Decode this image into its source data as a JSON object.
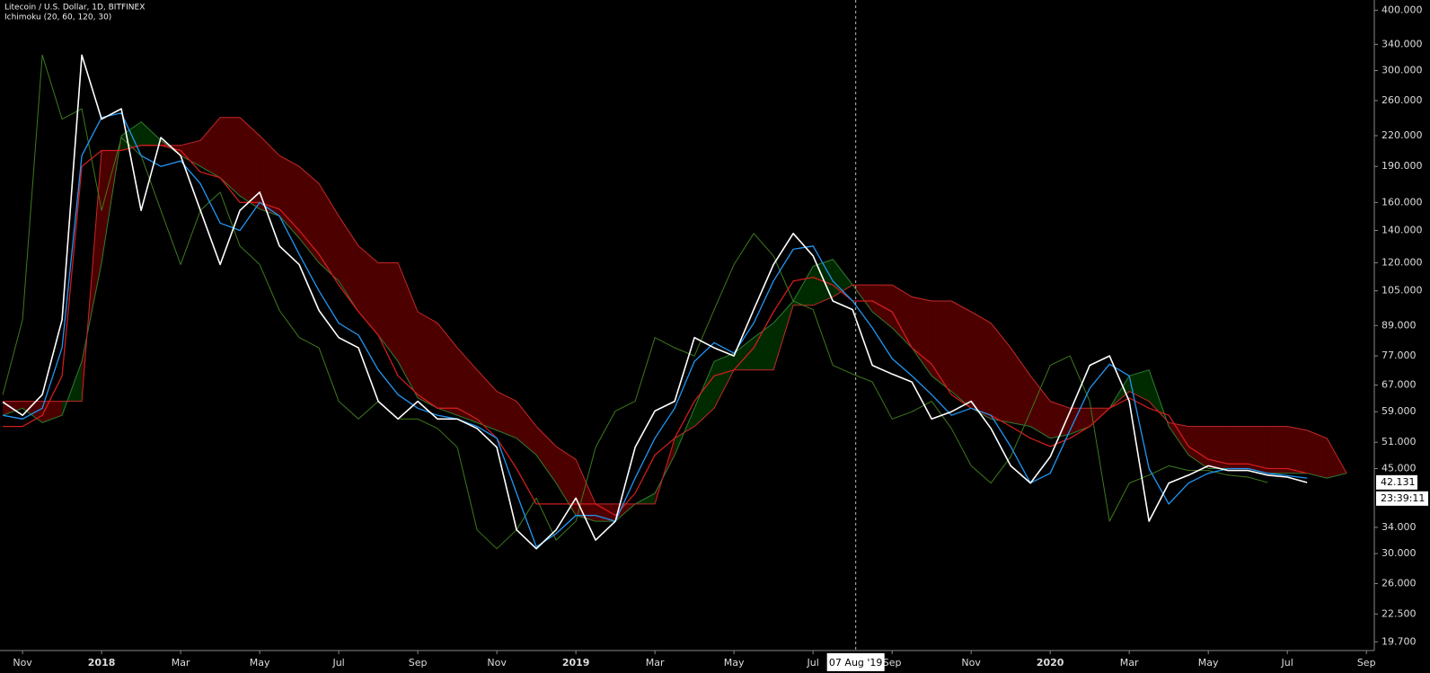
{
  "chart_data": {
    "type": "ichimoku",
    "title": "Litecoin / U.S. Dollar, 1D, BITFINEX",
    "subtitle": "Ichimoku (20, 60, 120, 30)",
    "log_scale": true,
    "xlim": [
      -0.57,
      34.2
    ],
    "ylim": [
      18.9,
      420
    ],
    "xticks": [
      {
        "value": 0,
        "label": "Nov"
      },
      {
        "value": 2,
        "label": "2018"
      },
      {
        "value": 4,
        "label": "Mar"
      },
      {
        "value": 6,
        "label": "May"
      },
      {
        "value": 8,
        "label": "Jul"
      },
      {
        "value": 10,
        "label": "Sep"
      },
      {
        "value": 12,
        "label": "Nov"
      },
      {
        "value": 14,
        "label": "2019"
      },
      {
        "value": 16,
        "label": "Mar"
      },
      {
        "value": 18,
        "label": "May"
      },
      {
        "value": 20,
        "label": "Jul"
      },
      {
        "value": 22,
        "label": "Sep"
      },
      {
        "value": 24,
        "label": "Nov"
      },
      {
        "value": 26,
        "label": "2020"
      },
      {
        "value": 28,
        "label": "Mar"
      },
      {
        "value": 30,
        "label": "May"
      },
      {
        "value": 32,
        "label": "Jul"
      },
      {
        "value": 34,
        "label": "Sep"
      }
    ],
    "yticks": [
      {
        "value": 400,
        "label": "400.000"
      },
      {
        "value": 340,
        "label": "340.000"
      },
      {
        "value": 300,
        "label": "300.000"
      },
      {
        "value": 260,
        "label": "260.000"
      },
      {
        "value": 220,
        "label": "220.000"
      },
      {
        "value": 190,
        "label": "190.000"
      },
      {
        "value": 160,
        "label": "160.000"
      },
      {
        "value": 140,
        "label": "140.000"
      },
      {
        "value": 120,
        "label": "120.000"
      },
      {
        "value": 105,
        "label": "105.000"
      },
      {
        "value": 89,
        "label": "89.000"
      },
      {
        "value": 77,
        "label": "77.000"
      },
      {
        "value": 67,
        "label": "67.000"
      },
      {
        "value": 59,
        "label": "59.000"
      },
      {
        "value": 51,
        "label": "51.000"
      },
      {
        "value": 45,
        "label": "45.000"
      },
      {
        "value": 34,
        "label": "34.000"
      },
      {
        "value": 30,
        "label": "30.000"
      },
      {
        "value": 26,
        "label": "26.000"
      },
      {
        "value": 22.5,
        "label": "22.500"
      },
      {
        "value": 19.7,
        "label": "19.700"
      }
    ],
    "x": [
      -0.5,
      0,
      0.5,
      1,
      1.5,
      2,
      2.5,
      3,
      3.5,
      4,
      4.5,
      5,
      5.5,
      6,
      6.5,
      7,
      7.5,
      8,
      8.5,
      9,
      9.5,
      10,
      10.5,
      11,
      11.5,
      12,
      12.5,
      13,
      13.5,
      14,
      14.5,
      15,
      15.5,
      16,
      16.5,
      17,
      17.5,
      18,
      18.5,
      19,
      19.5,
      20,
      20.5,
      21,
      21.5,
      22,
      22.5,
      23,
      23.5,
      24,
      24.5,
      25,
      25.5,
      26,
      26.5,
      27,
      27.5,
      28,
      28.5,
      29,
      29.5,
      30,
      30.5,
      31,
      31.5,
      32,
      32.5,
      33,
      33.5
    ],
    "cloud_up_color": "rgba(0,110,0,0.38)",
    "cloud_down_color": "rgba(140,0,0,0.55)",
    "span_a": {
      "color": "#2e7d32",
      "values": [
        58,
        60,
        56,
        58,
        75,
        120,
        220,
        235,
        215,
        200,
        190,
        180,
        165,
        155,
        150,
        135,
        120,
        110,
        95,
        85,
        75,
        63,
        60,
        58,
        56,
        54,
        52,
        48,
        42,
        36,
        35,
        35,
        38,
        40,
        48,
        60,
        75,
        78,
        84,
        90,
        100,
        118,
        122,
        108,
        95,
        88,
        80,
        70,
        65,
        60,
        57,
        56,
        55,
        52,
        53,
        55,
        60,
        70,
        72,
        55,
        48,
        45,
        45,
        45,
        44,
        44,
        44,
        43,
        44
      ]
    },
    "span_b": {
      "color": "#c62828",
      "values": [
        62,
        62,
        62,
        62,
        62,
        205,
        205,
        210,
        210,
        210,
        215,
        240,
        240,
        220,
        200,
        190,
        175,
        150,
        130,
        120,
        120,
        95,
        90,
        80,
        72,
        65,
        62,
        55,
        50,
        47,
        38,
        38,
        38,
        38,
        52,
        55,
        60,
        72,
        72,
        72,
        98,
        98,
        102,
        108,
        108,
        108,
        102,
        100,
        100,
        95,
        90,
        80,
        70,
        62,
        60,
        60,
        60,
        65,
        62,
        56,
        55,
        55,
        55,
        55,
        55,
        55,
        54,
        52,
        44
      ]
    },
    "lagging": {
      "color": "#3d7a1c",
      "values": [
        64,
        91.5,
        323,
        238,
        250,
        154,
        218,
        200,
        154,
        119,
        154,
        168,
        130,
        119,
        95.6,
        84,
        80,
        62,
        57,
        62,
        57,
        57,
        54.5,
        49.8,
        33.6,
        30.7,
        33.6,
        39.1,
        32,
        35,
        49.8,
        59.2,
        62,
        84,
        80,
        77,
        96,
        119,
        138,
        124,
        100,
        96,
        73.6,
        70.6,
        68,
        57,
        59,
        62,
        54.5,
        45.6,
        42,
        47.6,
        59,
        73.6,
        77,
        62,
        35,
        42,
        43.6,
        45.6,
        44.6,
        44.6,
        43.6,
        43.2,
        42.1,
        null,
        null,
        null,
        null
      ]
    },
    "base": {
      "color": "#d01c1c",
      "values": [
        55,
        55,
        58,
        70,
        190,
        205,
        205,
        210,
        210,
        205,
        185,
        180,
        160,
        160,
        155,
        140,
        125,
        108,
        95,
        85,
        70,
        64,
        60,
        60,
        57,
        52,
        45,
        38,
        38,
        38,
        38,
        36,
        40,
        48,
        52,
        62,
        70,
        72,
        80,
        95,
        110,
        112,
        108,
        100,
        100,
        95,
        80,
        74,
        64,
        60,
        58,
        55,
        52,
        50,
        52,
        55,
        60,
        63,
        60,
        58,
        50,
        47,
        46,
        46,
        45,
        45,
        44,
        null,
        null
      ]
    },
    "conversion": {
      "color": "#2196f3",
      "values": [
        58,
        57,
        60,
        80,
        200,
        240,
        245,
        200,
        190,
        195,
        175,
        145,
        140,
        160,
        150,
        125,
        105,
        90,
        85,
        72,
        64,
        60,
        58,
        57,
        55,
        52,
        40,
        31,
        33,
        36,
        36,
        35,
        43,
        52,
        60,
        75,
        82,
        78,
        90,
        110,
        128,
        130,
        110,
        100,
        88,
        76,
        70,
        64,
        58,
        60,
        58,
        50,
        42,
        44,
        54,
        66,
        74,
        70,
        45,
        38,
        42,
        44,
        45,
        45,
        44,
        43.5,
        43,
        null,
        null
      ]
    },
    "price": {
      "color": "#ffffff",
      "values": [
        61.8,
        58,
        64,
        91.5,
        323,
        238,
        250,
        154,
        218,
        200,
        154,
        119,
        154,
        168,
        130,
        119,
        95.6,
        84,
        80,
        62,
        57,
        62,
        57,
        57,
        54.5,
        49.8,
        33.6,
        30.7,
        33.6,
        39.1,
        32,
        35,
        49.8,
        59.2,
        62,
        84,
        80,
        77,
        96,
        119,
        138,
        124,
        100,
        96,
        73.6,
        70.6,
        68,
        57,
        59,
        62,
        54.5,
        45.6,
        42,
        47.6,
        59,
        73.6,
        77,
        62,
        35,
        42,
        43.6,
        45.6,
        44.6,
        44.6,
        43.6,
        43.2,
        42.1,
        null,
        null
      ]
    },
    "last_price": 42.131,
    "timer": "23:39:11",
    "crosshair": {
      "x": 21.08,
      "label": "07 Aug '19"
    }
  }
}
